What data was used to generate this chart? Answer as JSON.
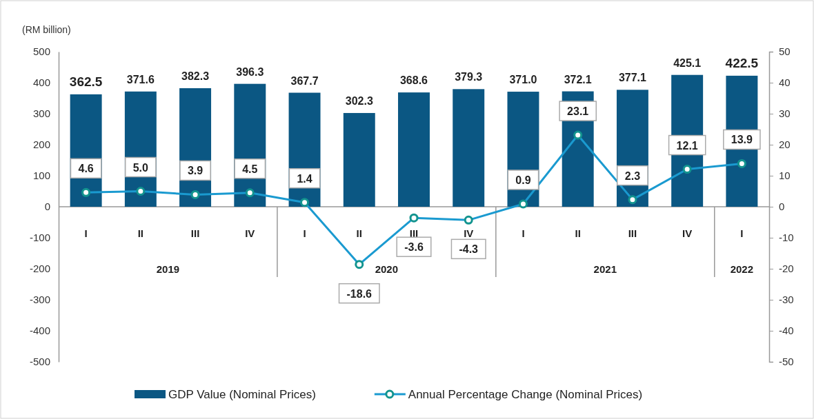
{
  "chart_data": {
    "type": "bar",
    "ylabel": "(RM billion)",
    "categories": [
      "I",
      "II",
      "III",
      "IV",
      "I",
      "II",
      "III",
      "IV",
      "I",
      "II",
      "III",
      "IV",
      "I"
    ],
    "annotations": [
      "2019",
      "2020",
      "2021",
      "2022"
    ],
    "series": [
      {
        "name": "GDP Value (Nominal Prices)",
        "color": "#0b5783",
        "values": [
          362.5,
          371.6,
          382.3,
          396.3,
          367.7,
          302.3,
          368.6,
          379.3,
          371.0,
          372.1,
          377.1,
          425.1,
          422.5
        ],
        "value_labels": [
          "362.5",
          "371.6",
          "382.3",
          "396.3",
          "367.7",
          "302.3",
          "368.6",
          "379.3",
          "371.0",
          "372.1",
          "377.1",
          "425.1",
          "422.5"
        ]
      },
      {
        "name": "Annual Percentage Change (Nominal Prices)",
        "type": "line",
        "axis": "y2",
        "color": "#1a9ad0",
        "marker": "circle",
        "values": [
          4.6,
          5.0,
          3.9,
          4.5,
          1.4,
          -18.6,
          -3.6,
          -4.3,
          0.9,
          23.1,
          2.3,
          12.1,
          13.9
        ],
        "value_labels": [
          "4.6",
          "5.0",
          "3.9",
          "4.5",
          "1.4",
          "-18.6",
          "-3.6",
          "-4.3",
          "0.9",
          "23.1",
          "2.3",
          "12.1",
          "13.9"
        ]
      }
    ],
    "ylim": [
      -500,
      500
    ],
    "yticks": [
      -500,
      -400,
      -300,
      -200,
      -100,
      0,
      100,
      200,
      300,
      400,
      500
    ],
    "y2lim": [
      -50,
      50
    ],
    "y2ticks": [
      -50,
      -40,
      -30,
      -20,
      -10,
      0,
      10,
      20,
      30,
      40,
      50
    ],
    "grid": false,
    "legend": "bottom"
  }
}
